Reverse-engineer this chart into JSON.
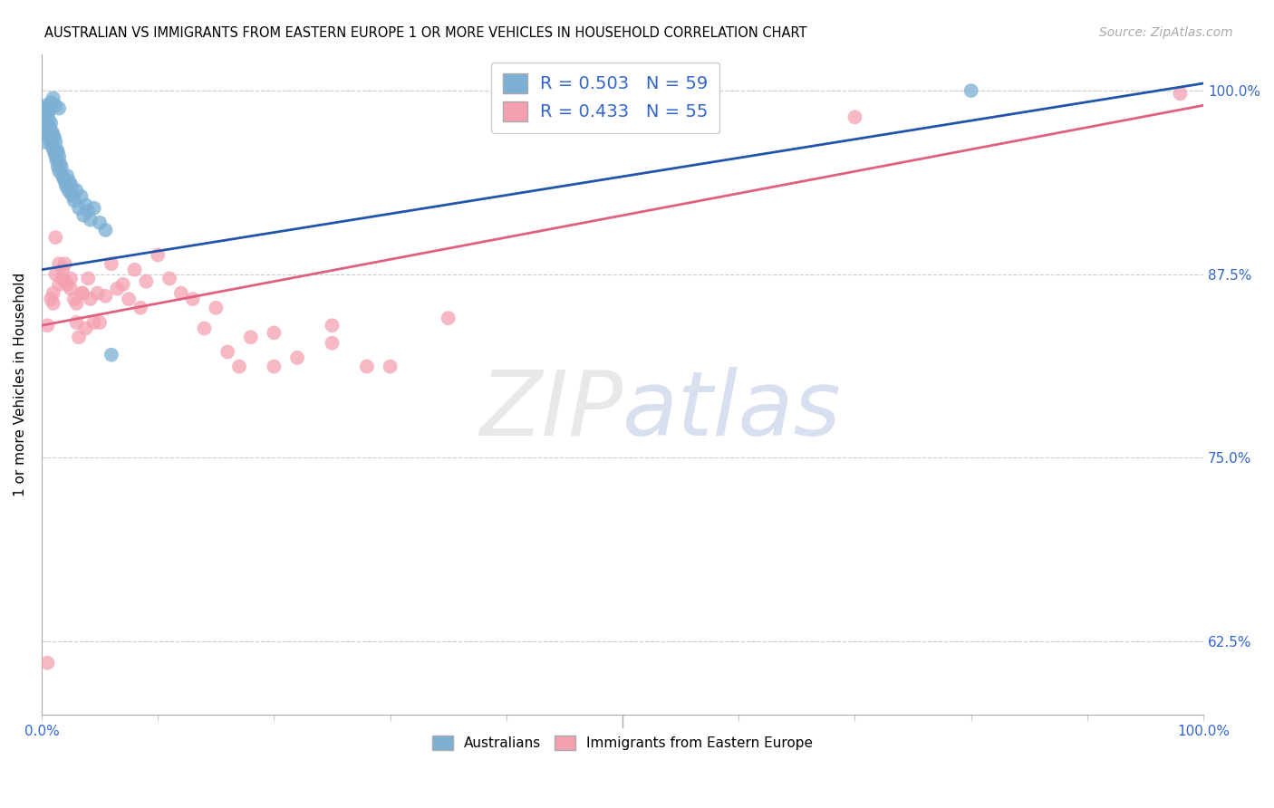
{
  "title": "AUSTRALIAN VS IMMIGRANTS FROM EASTERN EUROPE 1 OR MORE VEHICLES IN HOUSEHOLD CORRELATION CHART",
  "source": "Source: ZipAtlas.com",
  "ylabel": "1 or more Vehicles in Household",
  "ytick_labels": [
    "100.0%",
    "87.5%",
    "75.0%",
    "62.5%"
  ],
  "ytick_values": [
    1.0,
    0.875,
    0.75,
    0.625
  ],
  "xlim": [
    0.0,
    1.0
  ],
  "ylim": [
    0.575,
    1.025
  ],
  "legend_label1": "Australians",
  "legend_label2": "Immigrants from Eastern Europe",
  "R1": 0.503,
  "N1": 59,
  "R2": 0.433,
  "N2": 55,
  "color_blue": "#7BAFD4",
  "color_pink": "#F4A0B0",
  "line_blue": "#2255AA",
  "line_pink": "#E06080",
  "blue_x": [
    0.002,
    0.003,
    0.004,
    0.005,
    0.005,
    0.006,
    0.006,
    0.007,
    0.007,
    0.008,
    0.008,
    0.009,
    0.009,
    0.01,
    0.01,
    0.011,
    0.011,
    0.012,
    0.012,
    0.013,
    0.013,
    0.014,
    0.014,
    0.015,
    0.015,
    0.016,
    0.017,
    0.018,
    0.019,
    0.02,
    0.021,
    0.022,
    0.023,
    0.024,
    0.025,
    0.026,
    0.027,
    0.028,
    0.03,
    0.032,
    0.034,
    0.036,
    0.038,
    0.04,
    0.042,
    0.045,
    0.05,
    0.055,
    0.06,
    0.002,
    0.003,
    0.004,
    0.006,
    0.007,
    0.008,
    0.01,
    0.012,
    0.015,
    0.8
  ],
  "blue_y": [
    0.965,
    0.972,
    0.978,
    0.982,
    0.975,
    0.98,
    0.968,
    0.975,
    0.97,
    0.978,
    0.965,
    0.972,
    0.962,
    0.97,
    0.96,
    0.968,
    0.958,
    0.965,
    0.955,
    0.96,
    0.952,
    0.958,
    0.948,
    0.955,
    0.945,
    0.95,
    0.948,
    0.942,
    0.94,
    0.938,
    0.935,
    0.942,
    0.932,
    0.938,
    0.93,
    0.935,
    0.928,
    0.925,
    0.932,
    0.92,
    0.928,
    0.915,
    0.922,
    0.918,
    0.912,
    0.92,
    0.91,
    0.905,
    0.82,
    0.985,
    0.988,
    0.99,
    0.985,
    0.988,
    0.992,
    0.995,
    0.99,
    0.988,
    1.0
  ],
  "pink_x": [
    0.005,
    0.01,
    0.012,
    0.015,
    0.018,
    0.02,
    0.022,
    0.025,
    0.028,
    0.03,
    0.032,
    0.035,
    0.038,
    0.04,
    0.042,
    0.045,
    0.048,
    0.05,
    0.055,
    0.06,
    0.065,
    0.07,
    0.075,
    0.08,
    0.085,
    0.09,
    0.1,
    0.11,
    0.12,
    0.13,
    0.14,
    0.15,
    0.16,
    0.17,
    0.18,
    0.2,
    0.22,
    0.25,
    0.28,
    0.3,
    0.005,
    0.008,
    0.01,
    0.012,
    0.015,
    0.018,
    0.02,
    0.025,
    0.03,
    0.035,
    0.2,
    0.25,
    0.35,
    0.7,
    0.98
  ],
  "pink_y": [
    0.61,
    0.855,
    0.9,
    0.882,
    0.872,
    0.882,
    0.868,
    0.872,
    0.858,
    0.842,
    0.832,
    0.862,
    0.838,
    0.872,
    0.858,
    0.842,
    0.862,
    0.842,
    0.86,
    0.882,
    0.865,
    0.868,
    0.858,
    0.878,
    0.852,
    0.87,
    0.888,
    0.872,
    0.862,
    0.858,
    0.838,
    0.852,
    0.822,
    0.812,
    0.832,
    0.812,
    0.818,
    0.828,
    0.812,
    0.812,
    0.84,
    0.858,
    0.862,
    0.875,
    0.868,
    0.878,
    0.87,
    0.865,
    0.855,
    0.862,
    0.835,
    0.84,
    0.845,
    0.982,
    0.998
  ],
  "blue_line_x0": 0.0,
  "blue_line_x1": 1.0,
  "blue_line_y0": 0.878,
  "blue_line_y1": 1.005,
  "pink_line_x0": 0.0,
  "pink_line_x1": 1.0,
  "pink_line_y0": 0.84,
  "pink_line_y1": 0.99
}
